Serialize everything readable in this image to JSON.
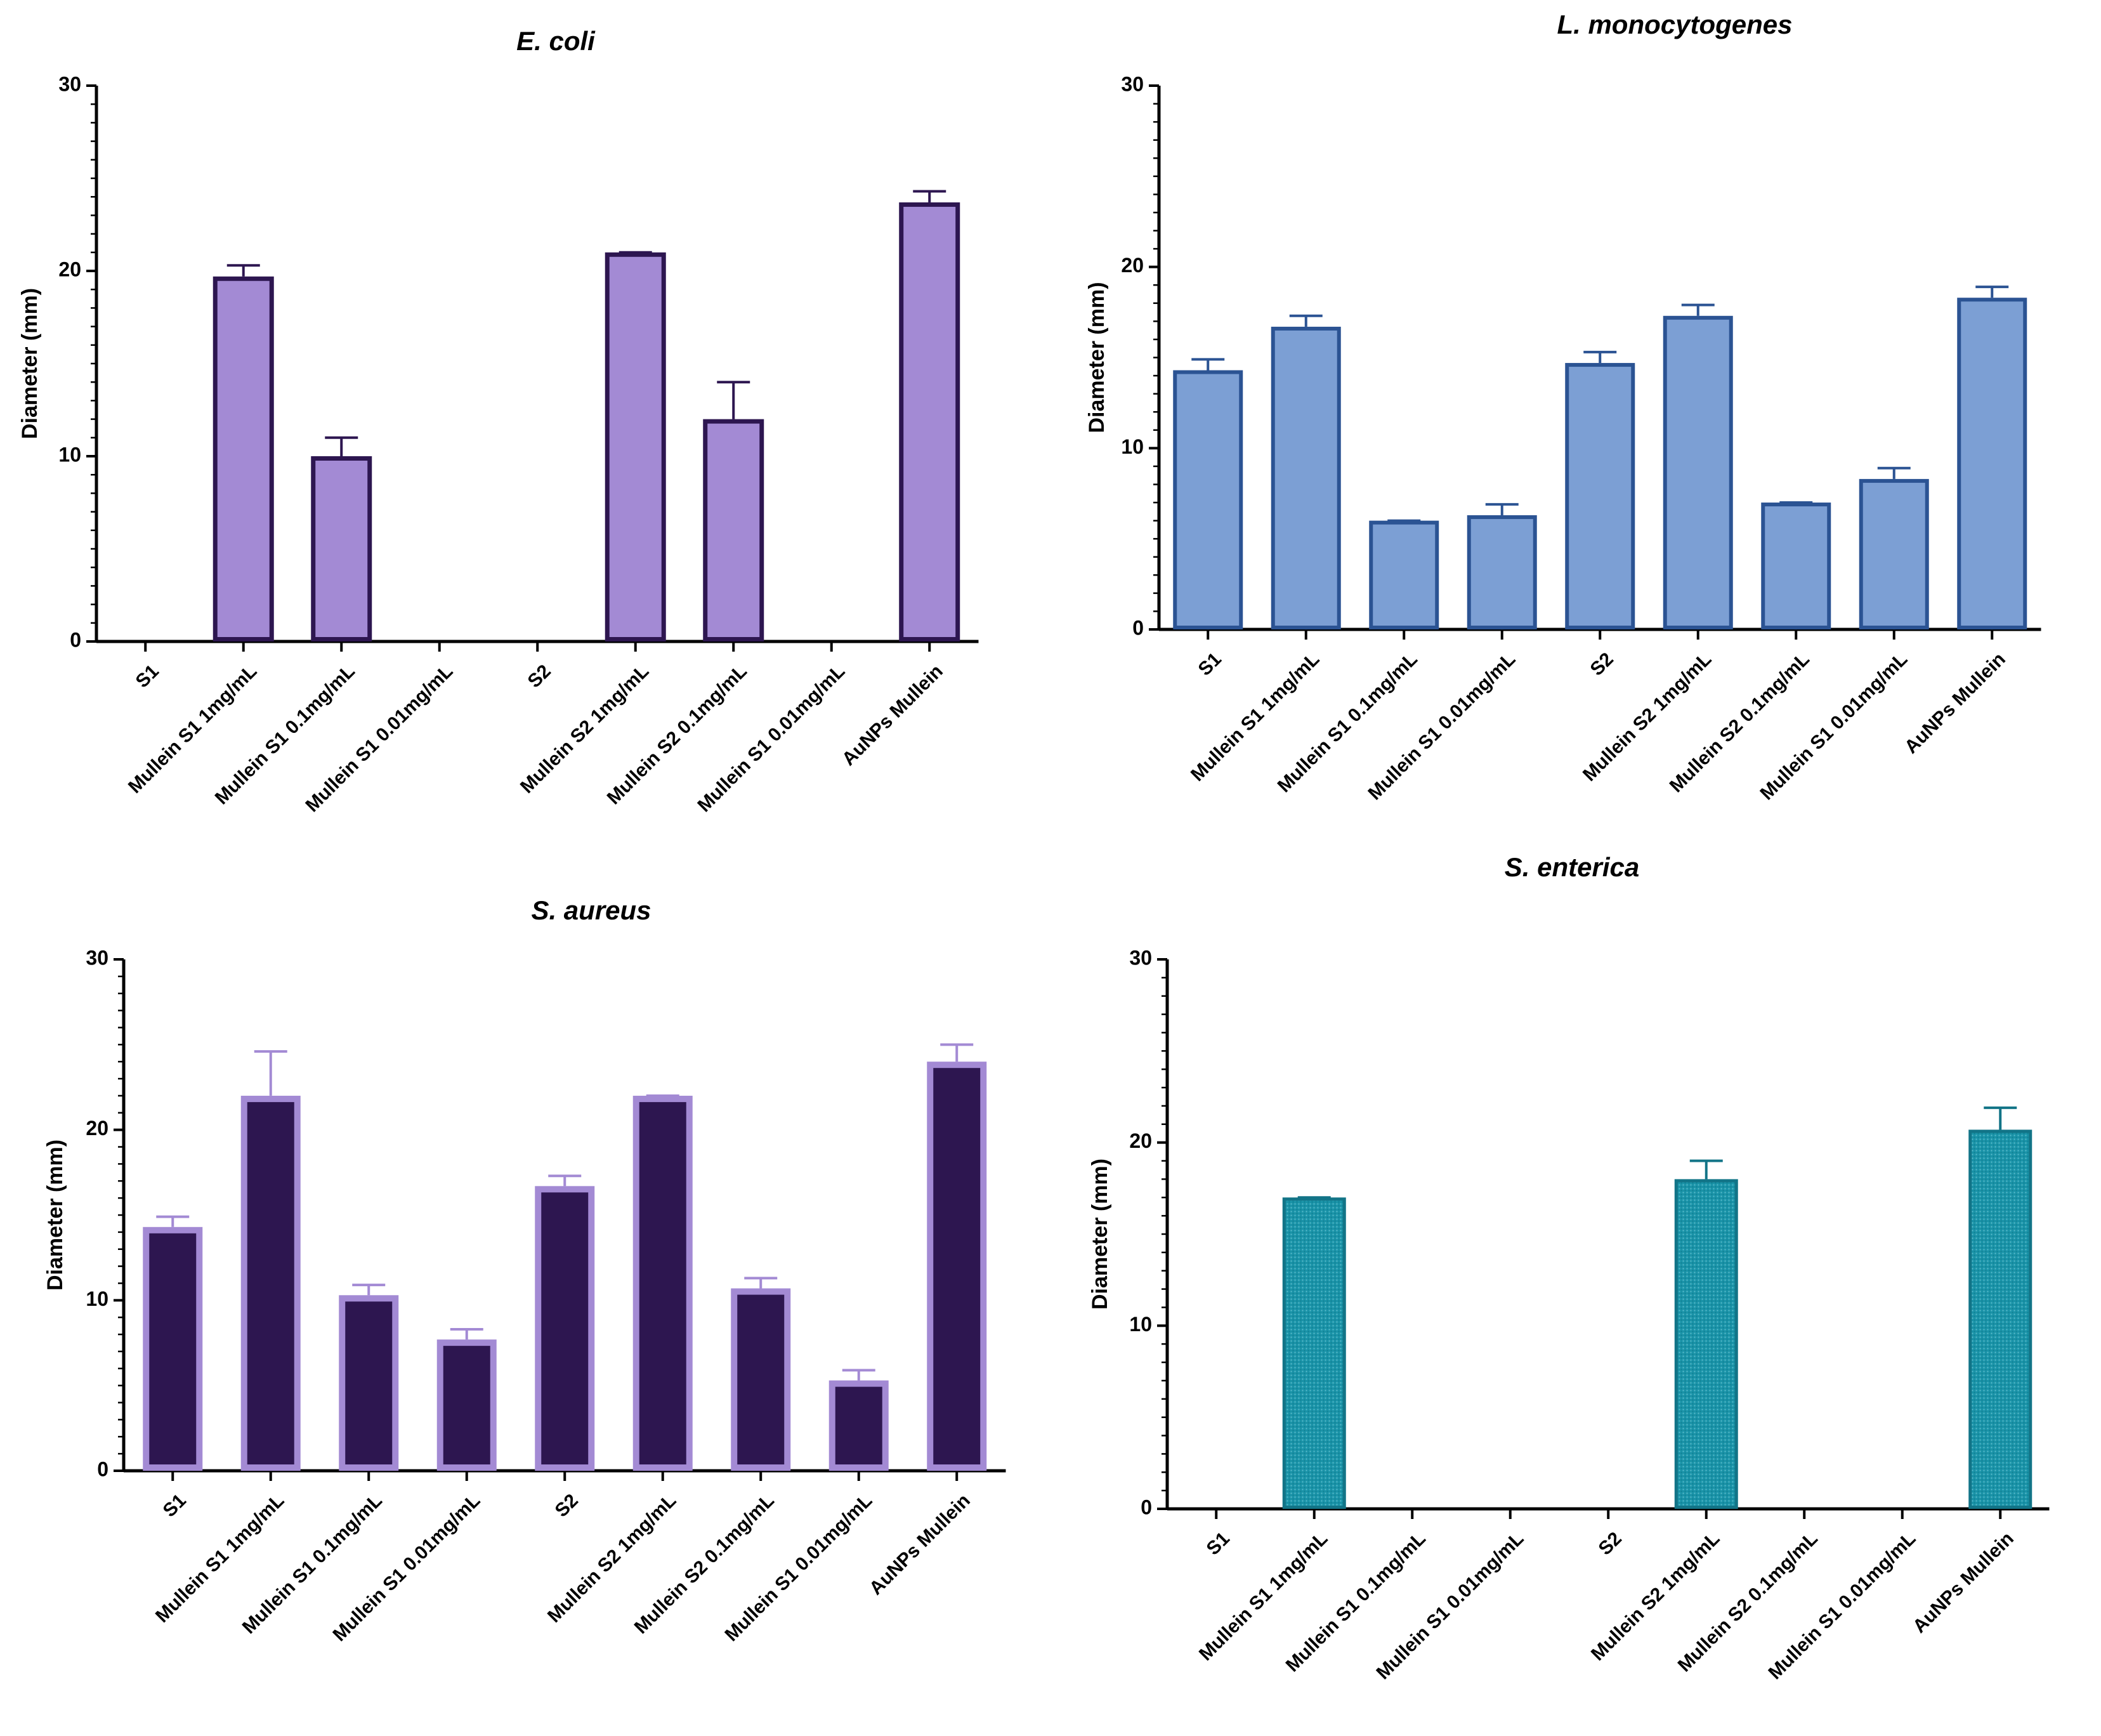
{
  "chart_data": [
    {
      "type": "bar",
      "title": "E. coli",
      "ylabel": "Diameter (mm)",
      "xlabel": "",
      "ylim": [
        0,
        30
      ],
      "yticks": [
        0,
        10,
        20,
        30
      ],
      "categories": [
        "S1",
        "Mullein S1 1mg/mL",
        "Mullein S1 0.1mg/mL",
        "Mullein S1 0.01mg/mL",
        "S2",
        "Mullein S2 1mg/mL",
        "Mullein S2 0.1mg/mL",
        "Mullein S1 0.01mg/mL",
        "AuNPs Mullein"
      ],
      "values": [
        0,
        19.7,
        10,
        0,
        0,
        21,
        12,
        0,
        23.7
      ],
      "errors": [
        0,
        0.6,
        1,
        0,
        0,
        0,
        2,
        0,
        0.6
      ],
      "grid": false,
      "colors": {
        "fill": "#a38ad4",
        "edge": "#2d1650",
        "error": "#2d1650"
      }
    },
    {
      "type": "bar",
      "title": "L. monocytogenes",
      "ylabel": "Diameter (mm)",
      "xlabel": "",
      "ylim": [
        0,
        30
      ],
      "yticks": [
        0,
        10,
        20,
        30
      ],
      "categories": [
        "S1",
        "Mullein S1 1mg/mL",
        "Mullein S1 0.1mg/mL",
        "Mullein S1 0.01mg/mL",
        "S2",
        "Mullein S2 1mg/mL",
        "Mullein S2 0.1mg/mL",
        "Mullein S1 0.01mg/mL",
        "AuNPs Mullein"
      ],
      "values": [
        14.3,
        16.7,
        6,
        6.3,
        14.7,
        17.3,
        7,
        8.3,
        18.3
      ],
      "errors": [
        0.6,
        0.6,
        0,
        0.6,
        0.6,
        0.6,
        0,
        0.6,
        0.6
      ],
      "grid": false,
      "colors": {
        "fill": "#7c9fd4",
        "edge": "#2b5393",
        "error": "#2b5393"
      }
    },
    {
      "type": "bar",
      "title": "S. aureus",
      "ylabel": "Diameter (mm)",
      "xlabel": "",
      "ylim": [
        0,
        30
      ],
      "yticks": [
        0,
        10,
        20,
        30
      ],
      "categories": [
        "S1",
        "Mullein S1 1mg/mL",
        "Mullein S1 0.1mg/mL",
        "Mullein S1 0.01mg/mL",
        "S2",
        "Mullein S2 1mg/mL",
        "Mullein S2 0.1mg/mL",
        "Mullein S1 0.01mg/mL",
        "AuNPs Mullein"
      ],
      "values": [
        14.3,
        22,
        10.3,
        7.7,
        16.7,
        22,
        10.7,
        5.3,
        24
      ],
      "errors": [
        0.6,
        2.6,
        0.6,
        0.6,
        0.6,
        0,
        0.6,
        0.6,
        1
      ],
      "grid": false,
      "colors": {
        "fill": "#2d1650",
        "edge": "#a38ad4",
        "error": "#a38ad4"
      }
    },
    {
      "type": "bar",
      "title": "S. enterica",
      "ylabel": "Diameter (mm)",
      "xlabel": "",
      "ylim": [
        0,
        30
      ],
      "yticks": [
        0,
        10,
        20,
        30
      ],
      "categories": [
        "S1",
        "Mullein S1 1mg/mL",
        "Mullein S1 0.1mg/mL",
        "Mullein S1 0.01mg/mL",
        "S2",
        "Mullein S2 1mg/mL",
        "Mullein S2 0.1mg/mL",
        "Mullein S1 0.01mg/mL",
        "AuNPs Mullein"
      ],
      "values": [
        0,
        17,
        0,
        0,
        0,
        18,
        0,
        0,
        20.7
      ],
      "errors": [
        0,
        0,
        0,
        0,
        0,
        1,
        0,
        0,
        1.2
      ],
      "grid": false,
      "colors": {
        "fill": "#1a93a8",
        "edge": "#127487",
        "error": "#127487"
      }
    }
  ]
}
